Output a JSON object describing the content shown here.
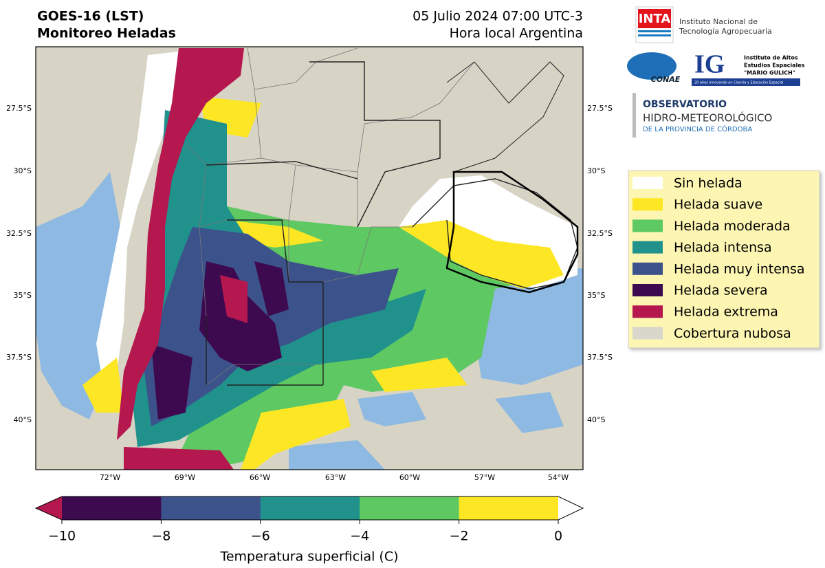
{
  "header": {
    "title": "GOES-16 (LST)",
    "subtitle": "Monitoreo Heladas",
    "date": "05 Julio 2024 07:00 UTC-3",
    "timezone": "Hora local Argentina"
  },
  "logos": {
    "inta": {
      "acronym": "INTA",
      "name_line1": "Instituto Nacional de",
      "name_line2": "Tecnología Agropecuaria"
    },
    "conae": {
      "acronym": "CONAE"
    },
    "ig": {
      "acronym": "IG",
      "line1": "Instituto de Altos",
      "line2": "Estudios Espaciales",
      "line3": "\"MARIO GULICH\"",
      "tagline": "20 años innovando en Ciencia y Educación Espacial"
    },
    "observatorio": {
      "line1": "OBSERVATORIO",
      "line2": "HIDRO-METEOROLÓGICO",
      "line3": "DE LA PROVINCIA DE CÓRDOBA"
    }
  },
  "map": {
    "lat_labels": [
      "27.5°S",
      "30°S",
      "32.5°S",
      "35°S",
      "37.5°S",
      "40°S"
    ],
    "lon_labels": [
      "72°W",
      "69°W",
      "66°W",
      "63°W",
      "60°W",
      "57°W",
      "54°W"
    ]
  },
  "legend": {
    "items": [
      {
        "label": "Sin helada",
        "color": "#ffffff"
      },
      {
        "label": "Helada suave",
        "color": "#fde725"
      },
      {
        "label": "Helada moderada",
        "color": "#5ec962"
      },
      {
        "label": "Helada intensa",
        "color": "#21918c"
      },
      {
        "label": "Helada muy intensa",
        "color": "#3b528b"
      },
      {
        "label": "Helada severa",
        "color": "#3d0a50"
      },
      {
        "label": "Helada extrema",
        "color": "#b5174f"
      },
      {
        "label": "Cobertura nubosa",
        "color": "#d9d6cc"
      }
    ]
  },
  "colorbar": {
    "title": "Temperatura superficial (C)",
    "ticks": [
      "−10",
      "−8",
      "−6",
      "−4",
      "−2",
      "0"
    ],
    "under_color": "#b5174f",
    "over_color": "#ffffff",
    "segment_colors": [
      "#3d0a50",
      "#3b528b",
      "#21918c",
      "#5ec962",
      "#fde725"
    ]
  }
}
